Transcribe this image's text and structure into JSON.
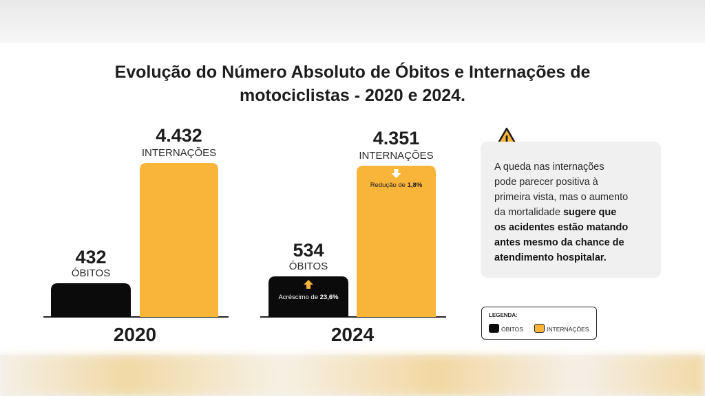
{
  "chart_data": {
    "type": "bar",
    "title_line1": "Evolução do Número Absoluto de Óbitos e Internações de",
    "title_line2": "motociclistas - 2020 e 2024.",
    "categories": [
      "2020",
      "2024"
    ],
    "series": [
      {
        "name": "ÓBITOS",
        "color": "#0b0b0b",
        "values": [
          432,
          534
        ],
        "value_labels": [
          "432",
          "534"
        ]
      },
      {
        "name": "INTERNAÇÕES",
        "color": "#f9b43a",
        "values": [
          4432,
          4351
        ],
        "value_labels": [
          "4.432",
          "4.351"
        ]
      }
    ],
    "annotations": [
      {
        "prefix": "Acréscimo de ",
        "value": "23,6%",
        "direction": "up",
        "category": "2024",
        "series": "ÓBITOS"
      },
      {
        "prefix": "Redução de ",
        "value": "1,8%",
        "direction": "down",
        "category": "2024",
        "series": "INTERNAÇÕES"
      }
    ],
    "legend": {
      "title": "LEGENDA:",
      "placement": "bottom-right",
      "items": [
        "ÓBITOS",
        "INTERNAÇÕES"
      ]
    }
  },
  "note": {
    "icon": "warning-icon",
    "line1": "A queda nas internações",
    "line2": "pode parecer positiva à",
    "line3": "primeira vista, mas o aumento",
    "line4_plain": "da mortalidade ",
    "line4_bold": "sugere que",
    "line5": "os acidentes estão matando",
    "line6": "antes mesmo da chance de",
    "line7": "atendimento hospitalar."
  },
  "colors": {
    "obitos": "#0b0b0b",
    "internacoes": "#f9b43a",
    "note_bg": "#f0f0f0"
  }
}
